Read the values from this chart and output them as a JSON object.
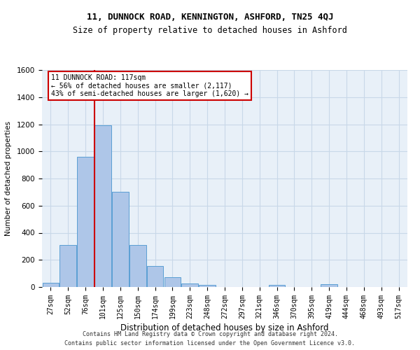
{
  "title1": "11, DUNNOCK ROAD, KENNINGTON, ASHFORD, TN25 4QJ",
  "title2": "Size of property relative to detached houses in Ashford",
  "xlabel": "Distribution of detached houses by size in Ashford",
  "ylabel": "Number of detached properties",
  "footer1": "Contains HM Land Registry data © Crown copyright and database right 2024.",
  "footer2": "Contains public sector information licensed under the Open Government Licence v3.0.",
  "bar_labels": [
    "27sqm",
    "52sqm",
    "76sqm",
    "101sqm",
    "125sqm",
    "150sqm",
    "174sqm",
    "199sqm",
    "223sqm",
    "248sqm",
    "272sqm",
    "297sqm",
    "321sqm",
    "346sqm",
    "370sqm",
    "395sqm",
    "419sqm",
    "444sqm",
    "468sqm",
    "493sqm",
    "517sqm"
  ],
  "bar_values": [
    30,
    310,
    960,
    1190,
    700,
    310,
    155,
    70,
    28,
    15,
    0,
    0,
    0,
    15,
    0,
    0,
    20,
    0,
    0,
    0,
    0
  ],
  "bar_color": "#aec6e8",
  "bar_edge_color": "#5a9fd4",
  "vline_color": "#cc0000",
  "annotation_title": "11 DUNNOCK ROAD: 117sqm",
  "annotation_line1": "← 56% of detached houses are smaller (2,117)",
  "annotation_line2": "43% of semi-detached houses are larger (1,620) →",
  "annotation_box_color": "#ffffff",
  "annotation_box_edge": "#cc0000",
  "ylim": [
    0,
    1600
  ],
  "yticks": [
    0,
    200,
    400,
    600,
    800,
    1000,
    1200,
    1400,
    1600
  ],
  "grid_color": "#c8d8e8",
  "bg_color": "#e8f0f8",
  "title_fontsize": 9,
  "subtitle_fontsize": 8.5
}
